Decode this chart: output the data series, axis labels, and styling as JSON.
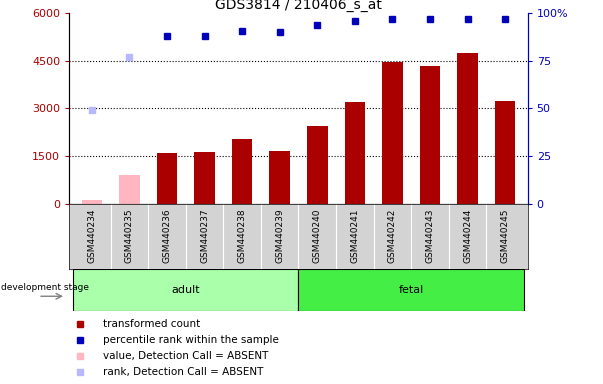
{
  "title": "GDS3814 / 210406_s_at",
  "samples": [
    "GSM440234",
    "GSM440235",
    "GSM440236",
    "GSM440237",
    "GSM440238",
    "GSM440239",
    "GSM440240",
    "GSM440241",
    "GSM440242",
    "GSM440243",
    "GSM440244",
    "GSM440245"
  ],
  "transformed_count": [
    120,
    900,
    1580,
    1640,
    2050,
    1650,
    2450,
    3200,
    4480,
    4350,
    4750,
    3250
  ],
  "is_absent": [
    true,
    true,
    false,
    false,
    false,
    false,
    false,
    false,
    false,
    false,
    false,
    false
  ],
  "percentile_rank": [
    49,
    77,
    88,
    88,
    91,
    90,
    94,
    96,
    97,
    97,
    97,
    97
  ],
  "absent_rank_idx": [
    1
  ],
  "absent_rank_val": 77,
  "stage": [
    "adult",
    "adult",
    "adult",
    "adult",
    "adult",
    "adult",
    "fetal",
    "fetal",
    "fetal",
    "fetal",
    "fetal",
    "fetal"
  ],
  "bar_color_present": "#aa0000",
  "bar_color_absent": "#ffb6c1",
  "dot_color_present": "#0000bb",
  "dot_color_absent": "#b8b8ff",
  "ylim_left": [
    0,
    6000
  ],
  "ylim_right": [
    0,
    100
  ],
  "yticks_left": [
    0,
    1500,
    3000,
    4500,
    6000
  ],
  "yticks_right": [
    0,
    25,
    50,
    75,
    100
  ],
  "adult_color": "#aaffaa",
  "fetal_color": "#44ee44",
  "bg_color": "#d3d3d3",
  "fig_width": 6.03,
  "fig_height": 3.84,
  "dpi": 100
}
